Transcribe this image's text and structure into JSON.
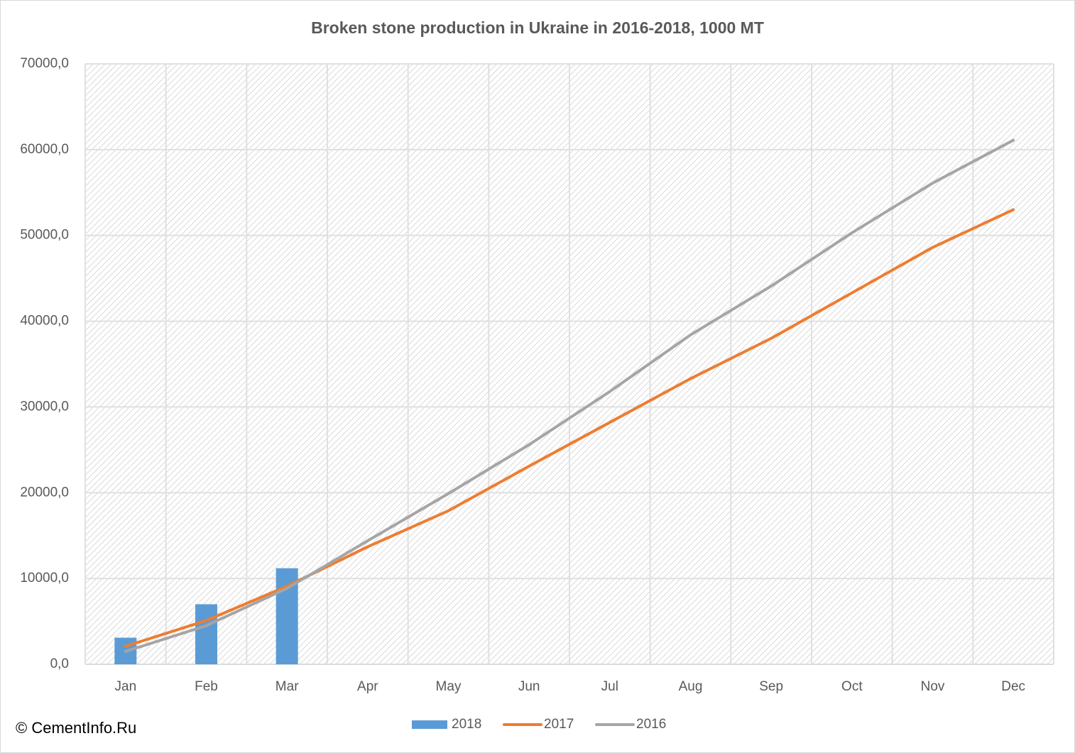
{
  "chart_data": {
    "type": "combo",
    "title": "Broken stone production in Ukraine in 2016-2018, 1000 MT",
    "source": "© CementInfo.Ru",
    "categories": [
      "Jan",
      "Feb",
      "Mar",
      "Apr",
      "May",
      "Jun",
      "Jul",
      "Aug",
      "Sep",
      "Oct",
      "Nov",
      "Dec"
    ],
    "series": [
      {
        "name": "2018",
        "type": "bar",
        "color": "#5b9bd5",
        "values": [
          3100,
          7000,
          11200,
          null,
          null,
          null,
          null,
          null,
          null,
          null,
          null,
          null
        ]
      },
      {
        "name": "2017",
        "type": "line",
        "color": "#ed7d31",
        "values": [
          2100,
          5100,
          9100,
          13700,
          17900,
          23100,
          28200,
          33300,
          38000,
          43300,
          48600,
          53000
        ]
      },
      {
        "name": "2016",
        "type": "line",
        "color": "#a5a5a5",
        "values": [
          1500,
          4500,
          8850,
          14400,
          19900,
          25600,
          31800,
          38400,
          44100,
          50300,
          56100,
          61100
        ]
      }
    ],
    "ylim": [
      0,
      70000
    ],
    "yticks": [
      {
        "value": 0,
        "label": "0,0"
      },
      {
        "value": 10000,
        "label": "10000,0"
      },
      {
        "value": 20000,
        "label": "20000,0"
      },
      {
        "value": 30000,
        "label": "30000,0"
      },
      {
        "value": 40000,
        "label": "40000,0"
      },
      {
        "value": 50000,
        "label": "50000,0"
      },
      {
        "value": 60000,
        "label": "60000,0"
      },
      {
        "value": 70000,
        "label": "70000,0"
      }
    ],
    "grid": true,
    "legend": "bottom"
  }
}
